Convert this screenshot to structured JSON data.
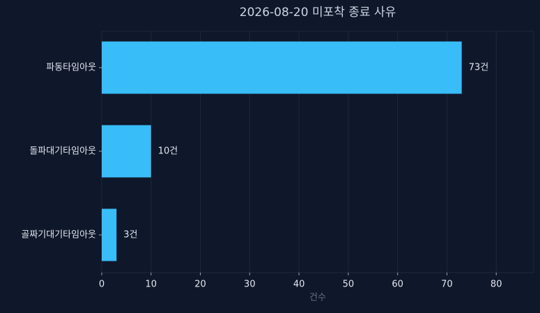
{
  "chart_data": {
    "type": "bar",
    "orientation": "horizontal",
    "title": "2026-08-20 미포착 종료 사유",
    "categories": [
      "파동타임아웃",
      "돌파대기타임아웃",
      "골짜기대기타임아웃"
    ],
    "values": [
      73,
      10,
      3
    ],
    "value_labels": [
      "73건",
      "10건",
      "3건"
    ],
    "color": "#38bdf8",
    "xlabel": "건수",
    "xlim": [
      0,
      87.6
    ],
    "xticks": [
      0,
      10,
      20,
      30,
      40,
      50,
      60,
      70,
      80
    ],
    "grid": true
  }
}
